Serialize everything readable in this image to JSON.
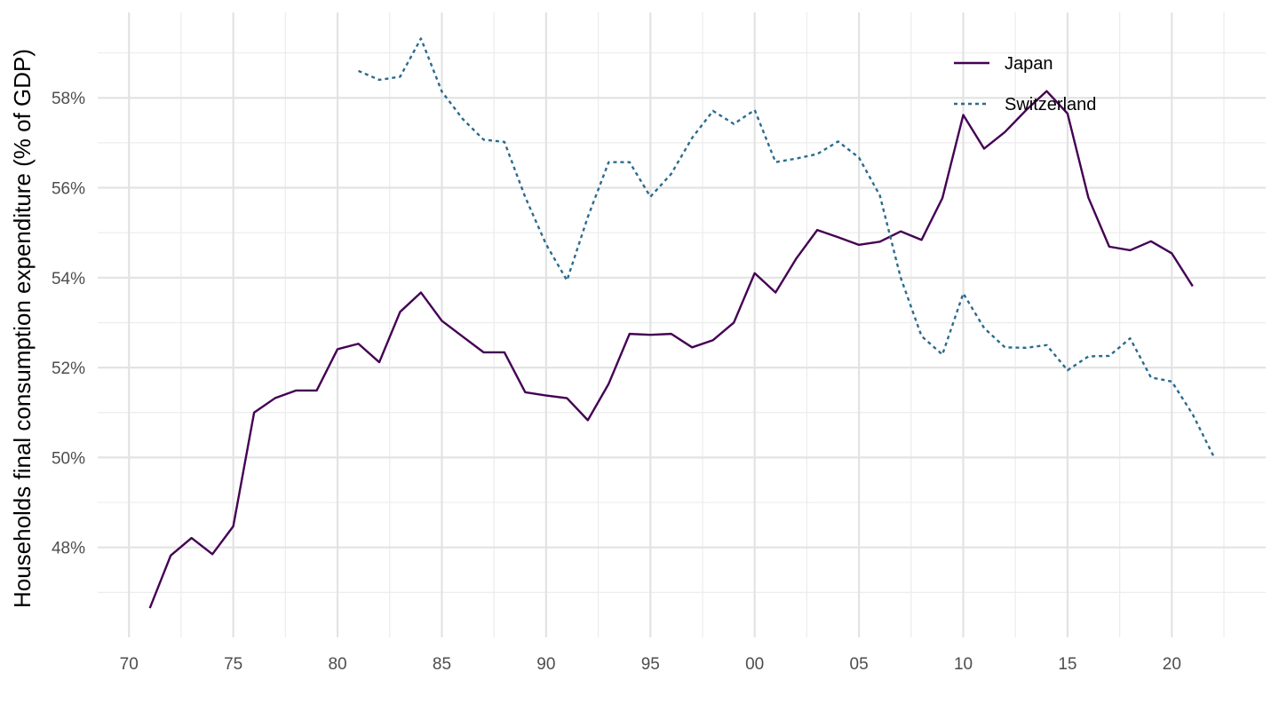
{
  "chart_data": {
    "type": "line",
    "title": "",
    "xlabel": "",
    "ylabel": "Households final consumption expenditure (% of GDP)",
    "x_ticks": [
      {
        "year": 1970,
        "label": "70"
      },
      {
        "year": 1975,
        "label": "75"
      },
      {
        "year": 1980,
        "label": "80"
      },
      {
        "year": 1985,
        "label": "85"
      },
      {
        "year": 1990,
        "label": "90"
      },
      {
        "year": 1995,
        "label": "95"
      },
      {
        "year": 2000,
        "label": "00"
      },
      {
        "year": 2005,
        "label": "05"
      },
      {
        "year": 2010,
        "label": "10"
      },
      {
        "year": 2015,
        "label": "15"
      },
      {
        "year": 2020,
        "label": "20"
      }
    ],
    "y_ticks": [
      {
        "value": 48,
        "label": "48%"
      },
      {
        "value": 50,
        "label": "50%"
      },
      {
        "value": 52,
        "label": "52%"
      },
      {
        "value": 54,
        "label": "54%"
      },
      {
        "value": 56,
        "label": "56%"
      },
      {
        "value": 58,
        "label": "58%"
      }
    ],
    "xlim": [
      1968.5,
      2024.5
    ],
    "ylim": [
      46.0,
      59.9
    ],
    "grid": true,
    "legend_position": "top-right",
    "series": [
      {
        "name": "Japan",
        "color": "#440154",
        "dash": "solid",
        "points": [
          [
            1971,
            46.65
          ],
          [
            1972,
            47.82
          ],
          [
            1973,
            48.21
          ],
          [
            1974,
            47.85
          ],
          [
            1975,
            48.47
          ],
          [
            1976,
            51.0
          ],
          [
            1977,
            51.32
          ],
          [
            1978,
            51.49
          ],
          [
            1979,
            51.49
          ],
          [
            1980,
            52.41
          ],
          [
            1981,
            52.53
          ],
          [
            1982,
            52.12
          ],
          [
            1983,
            53.24
          ],
          [
            1984,
            53.67
          ],
          [
            1985,
            53.04
          ],
          [
            1986,
            52.69
          ],
          [
            1987,
            52.34
          ],
          [
            1988,
            52.34
          ],
          [
            1989,
            51.45
          ],
          [
            1990,
            51.38
          ],
          [
            1991,
            51.32
          ],
          [
            1992,
            50.83
          ],
          [
            1993,
            51.64
          ],
          [
            1994,
            52.75
          ],
          [
            1995,
            52.73
          ],
          [
            1996,
            52.75
          ],
          [
            1997,
            52.45
          ],
          [
            1998,
            52.61
          ],
          [
            1999,
            53.0
          ],
          [
            2000,
            54.1
          ],
          [
            2001,
            53.67
          ],
          [
            2002,
            54.43
          ],
          [
            2003,
            55.06
          ],
          [
            2004,
            54.9
          ],
          [
            2005,
            54.73
          ],
          [
            2006,
            54.8
          ],
          [
            2007,
            55.03
          ],
          [
            2008,
            54.84
          ],
          [
            2009,
            55.77
          ],
          [
            2010,
            57.62
          ],
          [
            2011,
            56.87
          ],
          [
            2012,
            57.24
          ],
          [
            2013,
            57.72
          ],
          [
            2014,
            58.15
          ],
          [
            2015,
            57.65
          ],
          [
            2016,
            55.78
          ],
          [
            2017,
            54.69
          ],
          [
            2018,
            54.61
          ],
          [
            2019,
            54.81
          ],
          [
            2020,
            54.54
          ],
          [
            2021,
            53.81
          ]
        ]
      },
      {
        "name": "Switzerland",
        "color": "#2c6b8e",
        "dash": "dotted",
        "points": [
          [
            1981,
            58.6
          ],
          [
            1982,
            58.4
          ],
          [
            1983,
            58.47
          ],
          [
            1984,
            59.32
          ],
          [
            1985,
            58.14
          ],
          [
            1986,
            57.53
          ],
          [
            1987,
            57.07
          ],
          [
            1988,
            57.02
          ],
          [
            1989,
            55.79
          ],
          [
            1990,
            54.74
          ],
          [
            1991,
            53.94
          ],
          [
            1992,
            55.35
          ],
          [
            1993,
            56.57
          ],
          [
            1994,
            56.57
          ],
          [
            1995,
            55.8
          ],
          [
            1996,
            56.31
          ],
          [
            1997,
            57.11
          ],
          [
            1998,
            57.71
          ],
          [
            1999,
            57.42
          ],
          [
            2000,
            57.73
          ],
          [
            2001,
            56.57
          ],
          [
            2002,
            56.65
          ],
          [
            2003,
            56.75
          ],
          [
            2004,
            57.03
          ],
          [
            2005,
            56.67
          ],
          [
            2006,
            55.83
          ],
          [
            2007,
            54.0
          ],
          [
            2008,
            52.7
          ],
          [
            2009,
            52.29
          ],
          [
            2010,
            53.65
          ],
          [
            2011,
            52.88
          ],
          [
            2012,
            52.45
          ],
          [
            2013,
            52.44
          ],
          [
            2014,
            52.5
          ],
          [
            2015,
            51.94
          ],
          [
            2016,
            52.25
          ],
          [
            2017,
            52.26
          ],
          [
            2018,
            52.65
          ],
          [
            2019,
            51.78
          ],
          [
            2020,
            51.69
          ],
          [
            2021,
            50.96
          ],
          [
            2022,
            50.03
          ]
        ]
      }
    ]
  }
}
